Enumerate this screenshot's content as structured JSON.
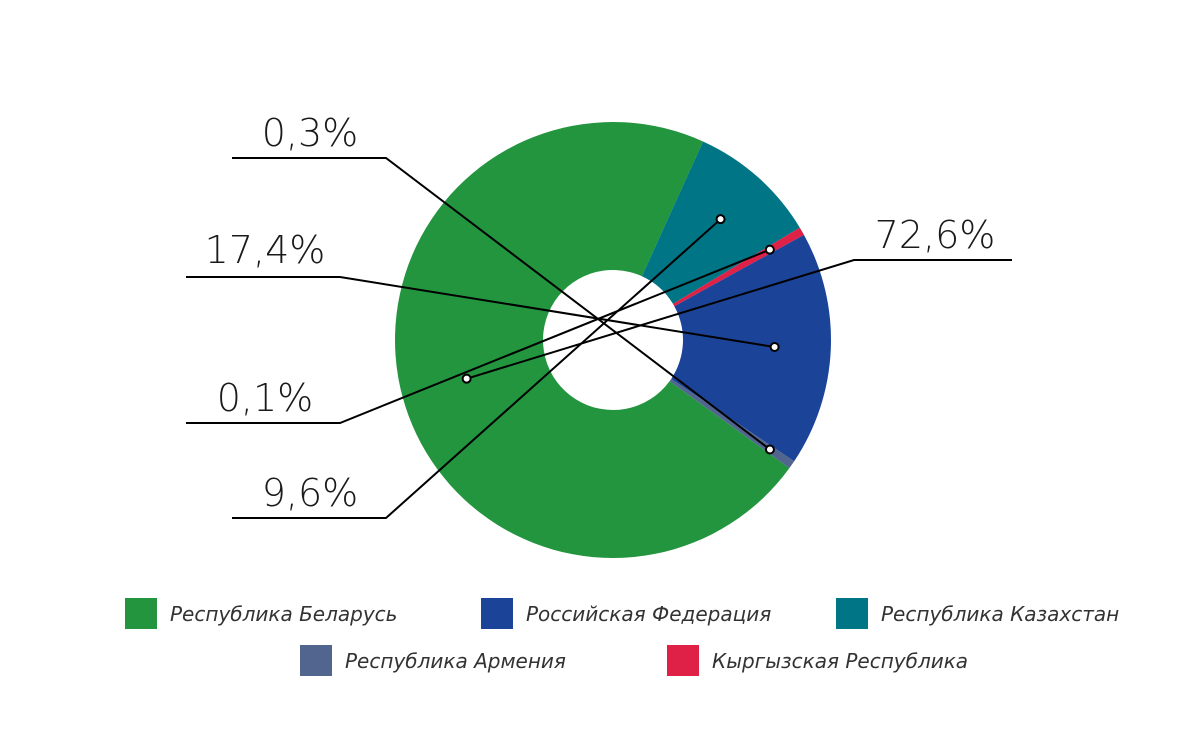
{
  "chart_data": {
    "type": "pie",
    "donut": true,
    "legend_position": "bottom",
    "slices": [
      {
        "name": "Республика Беларусь",
        "value": 72.6,
        "label": "72,6%",
        "color": "#22953e"
      },
      {
        "name": "Республика Казахстан",
        "value": 9.6,
        "label": "9,6%",
        "color": "#007585"
      },
      {
        "name": "Кыргызская Республика",
        "value": 0.1,
        "label": "0,1%",
        "color": "#df2047"
      },
      {
        "name": "Российская Федерация",
        "value": 17.4,
        "label": "17,4%",
        "color": "#1b4397"
      },
      {
        "name": "Республика Армения",
        "value": 0.3,
        "label": "0,3%",
        "color": "#51658f"
      }
    ],
    "legend": [
      {
        "name": "Республика Беларусь",
        "color": "#22953e"
      },
      {
        "name": "Российская Федерация",
        "color": "#1b4397"
      },
      {
        "name": "Республика Казахстан",
        "color": "#007585"
      },
      {
        "name": "Республика Армения",
        "color": "#51658f"
      },
      {
        "name": "Кыргызская Республика",
        "color": "#df2047"
      }
    ]
  }
}
